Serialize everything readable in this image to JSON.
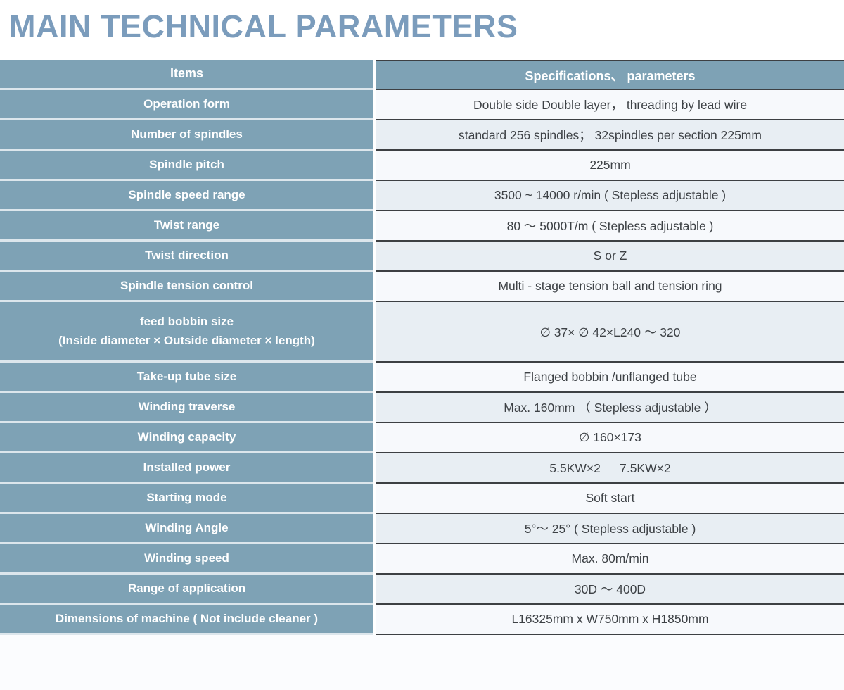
{
  "page": {
    "title": "MAIN TECHNICAL PARAMETERS"
  },
  "colors": {
    "title_blue": "#7b9cbc",
    "cell_blue": "#7ea2b5",
    "row_light": "#f7f9fc",
    "row_shaded": "#e8eef3",
    "border_dark": "#3d4043",
    "gap_light": "#dce6ec",
    "text_dark": "#3d4145"
  },
  "table": {
    "header": {
      "items": "Items",
      "specs": "Specifications、 parameters"
    },
    "rows": [
      {
        "label": "Operation form",
        "value": "Double side Double layer， threading by lead wire"
      },
      {
        "label": "Number of spindles",
        "value": "standard  256 spindles；  32spindles per section 225mm"
      },
      {
        "label": "Spindle pitch",
        "value": "225mm"
      },
      {
        "label": "Spindle speed range",
        "value": "3500 ~ 14000 r/min ( Stepless adjustable )"
      },
      {
        "label": "Twist range",
        "value": "80 ～ 5000T/m ( Stepless adjustable )"
      },
      {
        "label": "Twist direction",
        "value": "S or Z"
      },
      {
        "label": "Spindle tension control",
        "value": "Multi - stage tension ball and tension ring"
      },
      {
        "label": "feed bobbin size\n(Inside diameter × Outside diameter × length)",
        "value": "∅ 37× ∅ 42×L240 ～ 320"
      },
      {
        "label": "Take-up tube size",
        "value": "Flanged bobbin /unflanged tube"
      },
      {
        "label": "Winding traverse",
        "value": "Max. 160mm （ Stepless adjustable ）"
      },
      {
        "label": "Winding capacity",
        "value": "∅ 160×173"
      },
      {
        "label": "Installed power",
        "value": "5.5KW×2  ｜  7.5KW×2"
      },
      {
        "label": "Starting mode",
        "value": "Soft start"
      },
      {
        "label": "Winding Angle",
        "value": "5°～ 25° ( Stepless adjustable )"
      },
      {
        "label": "Winding speed",
        "value": "Max. 80m/min"
      },
      {
        "label": "Range of application",
        "value": "30D ～ 400D"
      },
      {
        "label": "Dimensions of machine ( Not include cleaner )",
        "value": "L16325mm x W750mm x H1850mm"
      }
    ]
  }
}
